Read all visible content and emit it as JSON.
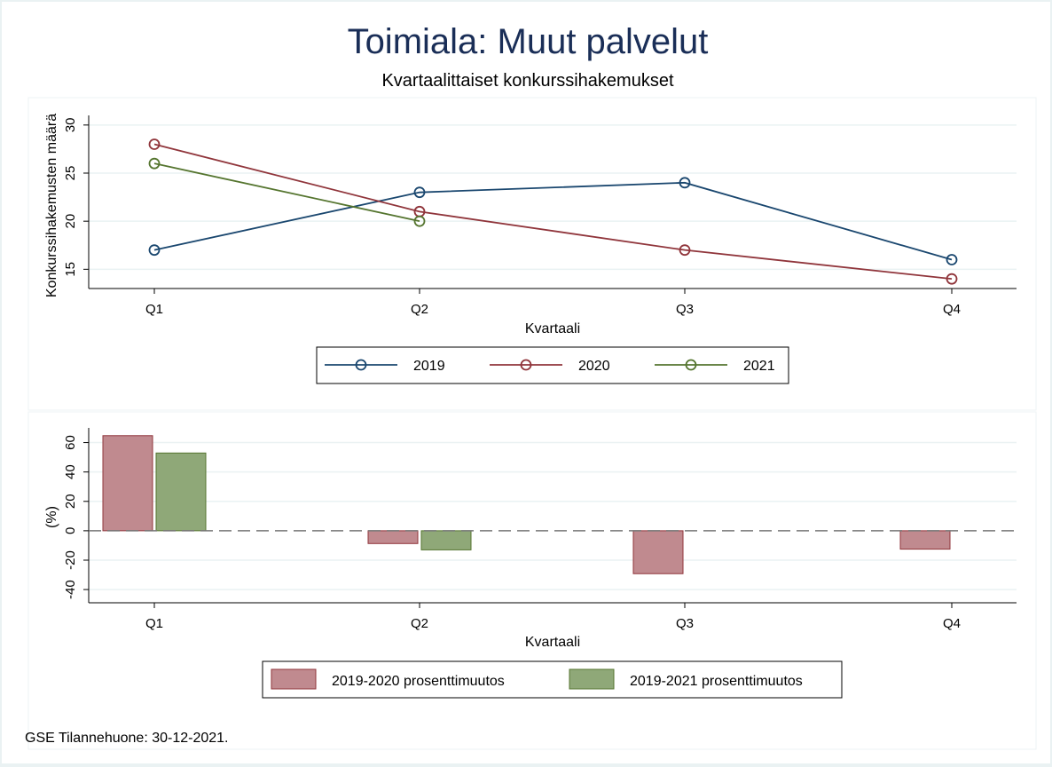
{
  "title": "Toimiala: Muut palvelut",
  "subtitle": "Kvartaalittaiset konkurssihakemukset",
  "footer": "GSE Tilannehuone: 30-12-2021.",
  "colors": {
    "s2019": "#1a476f",
    "s2020": "#90353b",
    "s2021": "#55752f",
    "bar2020": "#c08a8f",
    "bar2021": "#8fa878",
    "grid": "#eaf2f3"
  },
  "chart_data": [
    {
      "type": "line",
      "categories": [
        "Q1",
        "Q2",
        "Q3",
        "Q4"
      ],
      "xlabel": "Kvartaali",
      "ylabel": "Konkurssihakemusten määrä",
      "yticks": [
        15,
        20,
        25,
        30
      ],
      "ylim": [
        13,
        31
      ],
      "grid": true,
      "legend": "bottom",
      "series": [
        {
          "name": "2019",
          "values": [
            17,
            23,
            24,
            16
          ]
        },
        {
          "name": "2020",
          "values": [
            28,
            21,
            17,
            14
          ]
        },
        {
          "name": "2021",
          "values": [
            26,
            20,
            null,
            null
          ]
        }
      ]
    },
    {
      "type": "bar",
      "categories": [
        "Q1",
        "Q2",
        "Q3",
        "Q4"
      ],
      "xlabel": "Kvartaali",
      "ylabel": "(%)",
      "yticks": [
        -40,
        -20,
        0,
        20,
        40,
        60
      ],
      "ytick_labels": [
        "-40",
        "-20",
        "0",
        "20",
        "40",
        "60"
      ],
      "ylim": [
        -49,
        70
      ],
      "grid": true,
      "legend": "bottom",
      "series": [
        {
          "name": "2019-2020 prosenttimuutos",
          "values": [
            64.7,
            -8.7,
            -29.2,
            -12.5
          ]
        },
        {
          "name": "2019-2021 prosenttimuutos",
          "values": [
            52.9,
            -13.0,
            null,
            null
          ]
        }
      ]
    }
  ]
}
